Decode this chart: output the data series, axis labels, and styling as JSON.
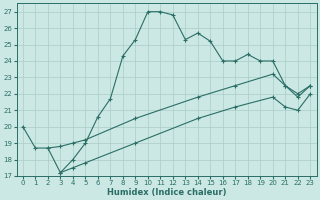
{
  "xlabel": "Humidex (Indice chaleur)",
  "bg_color": "#cce8e4",
  "line_color": "#2a6e66",
  "grid_color": "#aaccc8",
  "xlim": [
    -0.5,
    23.5
  ],
  "ylim": [
    17,
    27.5
  ],
  "xticks": [
    0,
    1,
    2,
    3,
    4,
    5,
    6,
    7,
    8,
    9,
    10,
    11,
    12,
    13,
    14,
    15,
    16,
    17,
    18,
    19,
    20,
    21,
    22,
    23
  ],
  "yticks": [
    17,
    18,
    19,
    20,
    21,
    22,
    23,
    24,
    25,
    26,
    27
  ],
  "series1_x": [
    0,
    1,
    2,
    3,
    4,
    5,
    6,
    7,
    8,
    9,
    10,
    11,
    12,
    13,
    14,
    15,
    16,
    17,
    18,
    19,
    20,
    21,
    22,
    23
  ],
  "series1_y": [
    20.0,
    18.7,
    18.7,
    17.2,
    18.0,
    19.0,
    20.6,
    21.7,
    24.3,
    25.3,
    27.0,
    27.0,
    26.8,
    25.3,
    25.7,
    25.2,
    24.0,
    24.0,
    24.4,
    24.0,
    24.0,
    22.5,
    22.0,
    22.5
  ],
  "series2_x": [
    2,
    3,
    4,
    5,
    9,
    14,
    17,
    20,
    21,
    22,
    23
  ],
  "series2_y": [
    18.7,
    18.8,
    19.0,
    19.2,
    20.5,
    21.8,
    22.5,
    23.2,
    22.5,
    21.8,
    22.5
  ],
  "series3_x": [
    3,
    4,
    5,
    9,
    14,
    17,
    20,
    21,
    22,
    23
  ],
  "series3_y": [
    17.2,
    17.5,
    17.8,
    19.0,
    20.5,
    21.2,
    21.8,
    21.2,
    21.0,
    22.0
  ]
}
